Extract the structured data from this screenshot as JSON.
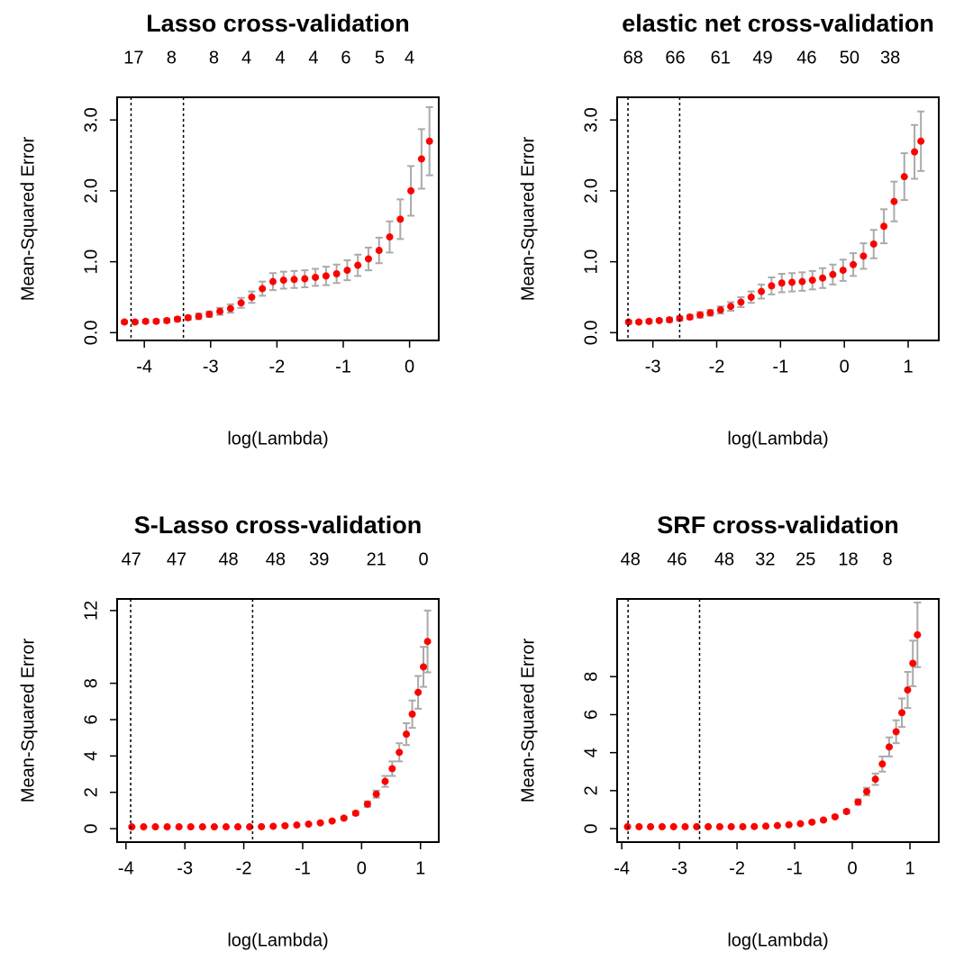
{
  "chart_data": [
    {
      "type": "scatter",
      "title": "Lasso cross-validation",
      "xlabel": "log(Lambda)",
      "ylabel": "Mean-Squared Error",
      "color": "#ff0000",
      "error_color": "#aaaaaa",
      "x": [
        -4.3,
        -4.14,
        -3.98,
        -3.82,
        -3.66,
        -3.5,
        -3.34,
        -3.18,
        -3.02,
        -2.86,
        -2.7,
        -2.54,
        -2.38,
        -2.22,
        -2.06,
        -1.9,
        -1.74,
        -1.58,
        -1.42,
        -1.26,
        -1.1,
        -0.94,
        -0.78,
        -0.62,
        -0.46,
        -0.3,
        -0.14,
        0.02,
        0.18,
        0.3
      ],
      "values": [
        0.15,
        0.15,
        0.16,
        0.16,
        0.17,
        0.19,
        0.21,
        0.23,
        0.26,
        0.3,
        0.34,
        0.42,
        0.5,
        0.62,
        0.72,
        0.74,
        0.75,
        0.76,
        0.78,
        0.8,
        0.83,
        0.88,
        0.95,
        1.04,
        1.16,
        1.35,
        1.6,
        2.0,
        2.45,
        2.7
      ],
      "errors": [
        0.02,
        0.02,
        0.02,
        0.02,
        0.03,
        0.03,
        0.03,
        0.04,
        0.04,
        0.05,
        0.06,
        0.07,
        0.08,
        0.1,
        0.12,
        0.12,
        0.12,
        0.12,
        0.12,
        0.13,
        0.13,
        0.14,
        0.15,
        0.16,
        0.18,
        0.22,
        0.28,
        0.35,
        0.42,
        0.48
      ],
      "vlines": [
        -4.2,
        -3.41
      ],
      "top_ticks": [
        {
          "value": -4.16,
          "label": "17"
        },
        {
          "value": -3.59,
          "label": "8"
        },
        {
          "value": -2.95,
          "label": "8"
        },
        {
          "value": -2.46,
          "label": "4"
        },
        {
          "value": -1.95,
          "label": "4"
        },
        {
          "value": -1.45,
          "label": "4"
        },
        {
          "value": -0.96,
          "label": "6"
        },
        {
          "value": -0.45,
          "label": "5"
        },
        {
          "value": 0,
          "label": "4"
        }
      ],
      "xlim": [
        -4.41,
        0.44
      ],
      "ylim": [
        -0.11,
        3.32
      ],
      "xticks": [
        -4,
        -3,
        -2,
        -1,
        0
      ],
      "yticks": [
        {
          "value": 0,
          "label": "0.0"
        },
        {
          "value": 1,
          "label": "1.0"
        },
        {
          "value": 2,
          "label": "2.0"
        },
        {
          "value": 3,
          "label": "3.0"
        }
      ]
    },
    {
      "type": "scatter",
      "title": "elastic net cross-validation",
      "xlabel": "log(Lambda)",
      "ylabel": "Mean-Squared Error",
      "color": "#ff0000",
      "error_color": "#aaaaaa",
      "x": [
        -3.38,
        -3.22,
        -3.06,
        -2.9,
        -2.74,
        -2.58,
        -2.42,
        -2.26,
        -2.1,
        -1.94,
        -1.78,
        -1.62,
        -1.46,
        -1.3,
        -1.14,
        -0.98,
        -0.82,
        -0.66,
        -0.5,
        -0.34,
        -0.18,
        -0.02,
        0.14,
        0.3,
        0.46,
        0.62,
        0.78,
        0.94,
        1.1,
        1.2
      ],
      "values": [
        0.15,
        0.15,
        0.16,
        0.17,
        0.18,
        0.2,
        0.22,
        0.25,
        0.28,
        0.32,
        0.37,
        0.43,
        0.5,
        0.58,
        0.66,
        0.7,
        0.71,
        0.72,
        0.74,
        0.77,
        0.82,
        0.88,
        0.96,
        1.08,
        1.25,
        1.5,
        1.85,
        2.2,
        2.55,
        2.7
      ],
      "errors": [
        0.02,
        0.02,
        0.02,
        0.02,
        0.03,
        0.03,
        0.03,
        0.04,
        0.04,
        0.05,
        0.06,
        0.07,
        0.08,
        0.1,
        0.12,
        0.13,
        0.13,
        0.13,
        0.13,
        0.14,
        0.14,
        0.15,
        0.16,
        0.18,
        0.2,
        0.24,
        0.28,
        0.33,
        0.38,
        0.42
      ],
      "vlines": [
        -3.39,
        -2.58
      ],
      "top_ticks": [
        {
          "value": -3.31,
          "label": "68"
        },
        {
          "value": -2.65,
          "label": "66"
        },
        {
          "value": -1.94,
          "label": "61"
        },
        {
          "value": -1.28,
          "label": "49"
        },
        {
          "value": -0.59,
          "label": "46"
        },
        {
          "value": 0.08,
          "label": "50"
        },
        {
          "value": 0.72,
          "label": "38"
        }
      ],
      "xlim": [
        -3.56,
        1.48
      ],
      "ylim": [
        -0.11,
        3.32
      ],
      "xticks": [
        -3,
        -2,
        -1,
        0,
        1
      ],
      "yticks": [
        {
          "value": 0,
          "label": "0.0"
        },
        {
          "value": 1,
          "label": "1.0"
        },
        {
          "value": 2,
          "label": "2.0"
        },
        {
          "value": 3,
          "label": "3.0"
        }
      ]
    },
    {
      "type": "scatter",
      "title": "S-Lasso cross-validation",
      "xlabel": "log(Lambda)",
      "ylabel": "Mean-Squared Error",
      "color": "#ff0000",
      "error_color": "#aaaaaa",
      "x": [
        -3.9,
        -3.7,
        -3.5,
        -3.3,
        -3.1,
        -2.9,
        -2.7,
        -2.5,
        -2.3,
        -2.1,
        -1.9,
        -1.7,
        -1.5,
        -1.3,
        -1.1,
        -0.9,
        -0.7,
        -0.5,
        -0.3,
        -0.1,
        0.1,
        0.25,
        0.4,
        0.52,
        0.64,
        0.76,
        0.86,
        0.96,
        1.05,
        1.12
      ],
      "values": [
        0.1,
        0.1,
        0.1,
        0.1,
        0.1,
        0.1,
        0.1,
        0.1,
        0.1,
        0.1,
        0.1,
        0.11,
        0.13,
        0.16,
        0.2,
        0.25,
        0.32,
        0.42,
        0.58,
        0.85,
        1.35,
        1.9,
        2.6,
        3.3,
        4.2,
        5.2,
        6.3,
        7.5,
        8.9,
        10.3
      ],
      "errors": [
        0.01,
        0.01,
        0.01,
        0.01,
        0.01,
        0.01,
        0.01,
        0.01,
        0.01,
        0.01,
        0.01,
        0.01,
        0.01,
        0.02,
        0.02,
        0.03,
        0.04,
        0.05,
        0.07,
        0.1,
        0.15,
        0.2,
        0.3,
        0.4,
        0.5,
        0.6,
        0.75,
        0.9,
        1.1,
        1.7
      ],
      "vlines": [
        -3.92,
        -1.85
      ],
      "top_ticks": [
        {
          "value": -3.91,
          "label": "47"
        },
        {
          "value": -3.14,
          "label": "47"
        },
        {
          "value": -2.26,
          "label": "48"
        },
        {
          "value": -1.46,
          "label": "48"
        },
        {
          "value": -0.72,
          "label": "39"
        },
        {
          "value": 0.25,
          "label": "21"
        },
        {
          "value": 1.05,
          "label": "0"
        }
      ],
      "xlim": [
        -4.15,
        1.31
      ],
      "ylim": [
        -0.74,
        12.64
      ],
      "xticks": [
        -4,
        -3,
        -2,
        -1,
        0,
        1
      ],
      "yticks": [
        0,
        2,
        4,
        6,
        8,
        12
      ]
    },
    {
      "type": "scatter",
      "title": "SRF cross-validation",
      "xlabel": "log(Lambda)",
      "ylabel": "Mean-Squared Error",
      "color": "#ff0000",
      "error_color": "#aaaaaa",
      "x": [
        -3.9,
        -3.7,
        -3.5,
        -3.3,
        -3.1,
        -2.9,
        -2.7,
        -2.5,
        -2.3,
        -2.1,
        -1.9,
        -1.7,
        -1.5,
        -1.3,
        -1.1,
        -0.9,
        -0.7,
        -0.5,
        -0.3,
        -0.1,
        0.1,
        0.25,
        0.4,
        0.52,
        0.64,
        0.76,
        0.86,
        0.96,
        1.05,
        1.13
      ],
      "values": [
        0.1,
        0.1,
        0.1,
        0.1,
        0.1,
        0.1,
        0.1,
        0.1,
        0.1,
        0.1,
        0.1,
        0.11,
        0.13,
        0.16,
        0.2,
        0.26,
        0.34,
        0.45,
        0.62,
        0.9,
        1.4,
        1.95,
        2.6,
        3.4,
        4.3,
        5.1,
        6.1,
        7.3,
        8.7,
        10.2
      ],
      "errors": [
        0.01,
        0.01,
        0.01,
        0.01,
        0.01,
        0.01,
        0.01,
        0.01,
        0.01,
        0.01,
        0.01,
        0.01,
        0.01,
        0.02,
        0.02,
        0.03,
        0.04,
        0.05,
        0.07,
        0.1,
        0.15,
        0.2,
        0.3,
        0.4,
        0.5,
        0.6,
        0.75,
        0.95,
        1.2,
        1.7
      ],
      "vlines": [
        -3.89,
        -2.65
      ],
      "top_ticks": [
        {
          "value": -3.85,
          "label": "48"
        },
        {
          "value": -3.04,
          "label": "46"
        },
        {
          "value": -2.22,
          "label": "48"
        },
        {
          "value": -1.51,
          "label": "32"
        },
        {
          "value": -0.81,
          "label": "25"
        },
        {
          "value": -0.07,
          "label": "18"
        },
        {
          "value": 0.61,
          "label": "8"
        }
      ],
      "xlim": [
        -4.08,
        1.5
      ],
      "ylim": [
        -0.71,
        12.09
      ],
      "xticks": [
        -4,
        -3,
        -2,
        -1,
        0,
        1
      ],
      "yticks": [
        0,
        2,
        4,
        6,
        8
      ]
    }
  ]
}
